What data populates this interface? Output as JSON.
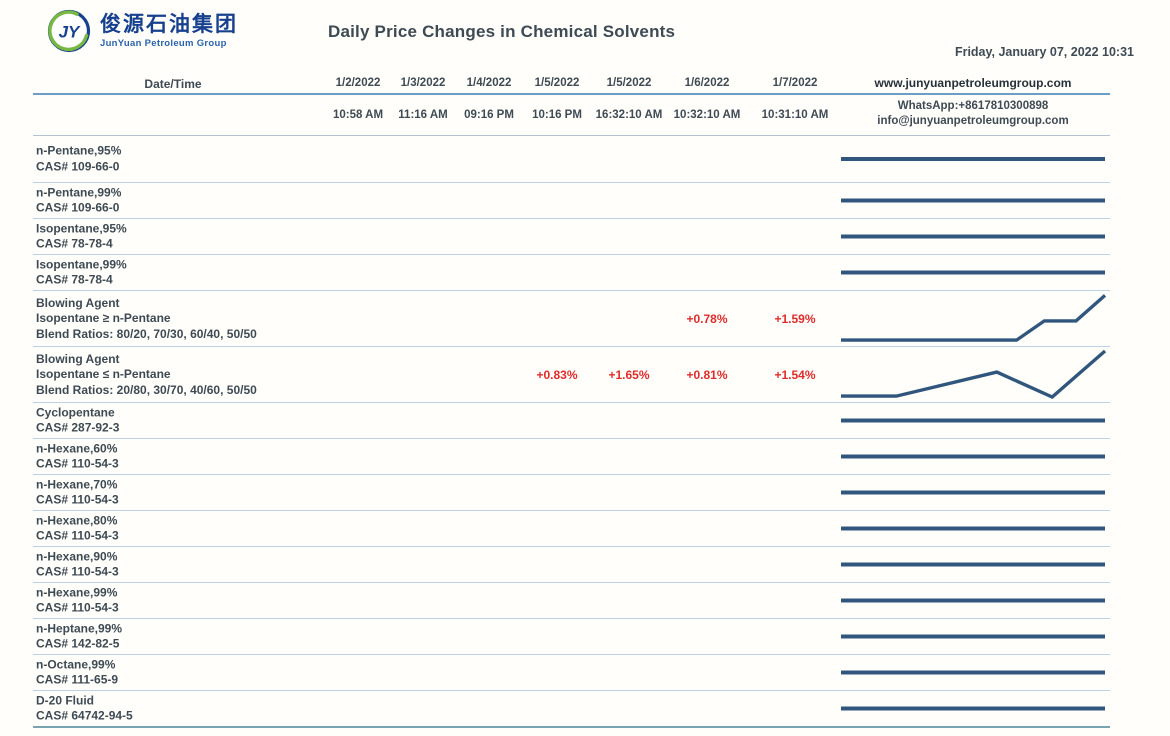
{
  "header": {
    "logo": {
      "chinese": "俊源石油集团",
      "english": "JunYuan Petroleum Group",
      "monogram": "JY"
    },
    "title": "Daily Price Changes in Chemical Solvents",
    "datetime": "Friday, January 07, 2022 10:31"
  },
  "contact": {
    "website": "www.junyuanpetroleumgroup.com",
    "whatsapp": "WhatsApp:+8617810300898",
    "email": "info@junyuanpetroleumgroup.com"
  },
  "table": {
    "corner_label": "Date/Time",
    "columns": [
      {
        "date": "1/2/2022",
        "time": "10:58 AM"
      },
      {
        "date": "1/3/2022",
        "time": "11:16 AM"
      },
      {
        "date": "1/4/2022",
        "time": "09:16 PM"
      },
      {
        "date": "1/5/2022",
        "time": "10:16 PM"
      },
      {
        "date": "1/5/2022",
        "time": "16:32:10 AM"
      },
      {
        "date": "1/6/2022",
        "time": "10:32:10 AM"
      },
      {
        "date": "1/7/2022",
        "time": "10:31:10 AM"
      }
    ],
    "rows": [
      {
        "label_lines": [
          "n-Pentane,95%",
          "CAS# 109-66-0"
        ],
        "values": [
          "",
          "",
          "",
          "",
          "",
          "",
          ""
        ],
        "sparkline": "flat"
      },
      {
        "label_lines": [
          "n-Pentane,99%",
          "CAS# 109-66-0"
        ],
        "values": [
          "",
          "",
          "",
          "",
          "",
          "",
          ""
        ],
        "sparkline": "flat"
      },
      {
        "label_lines": [
          "Isopentane,95%",
          "CAS# 78-78-4"
        ],
        "values": [
          "",
          "",
          "",
          "",
          "",
          "",
          ""
        ],
        "sparkline": "flat"
      },
      {
        "label_lines": [
          "Isopentane,99%",
          "CAS# 78-78-4"
        ],
        "values": [
          "",
          "",
          "",
          "",
          "",
          "",
          ""
        ],
        "sparkline": "flat"
      },
      {
        "label_lines": [
          "Blowing Agent",
          "Isopentane ≥ n-Pentane",
          "Blend Ratios: 80/20, 70/30, 60/40, 50/50"
        ],
        "values": [
          "",
          "",
          "",
          "",
          "",
          "+0.78%",
          "+1.59%"
        ],
        "sparkline": [
          [
            0,
            0.96
          ],
          [
            0.665,
            0.96
          ],
          [
            0.77,
            0.56
          ],
          [
            0.89,
            0.56
          ],
          [
            1,
            0.03
          ]
        ]
      },
      {
        "label_lines": [
          "Blowing Agent",
          "Isopentane ≤ n-Pentane",
          "Blend Ratios: 20/80, 30/70, 40/60, 50/50"
        ],
        "values": [
          "",
          "",
          "",
          "+0.83%",
          "+1.65%",
          "+0.81%",
          "+1.54%"
        ],
        "sparkline": [
          [
            0,
            0.96
          ],
          [
            0.21,
            0.96
          ],
          [
            0.59,
            0.46
          ],
          [
            0.8,
            0.98
          ],
          [
            1,
            0.02
          ]
        ]
      },
      {
        "label_lines": [
          "Cyclopentane",
          "CAS# 287-92-3"
        ],
        "values": [
          "",
          "",
          "",
          "",
          "",
          "",
          ""
        ],
        "sparkline": "flat"
      },
      {
        "label_lines": [
          "n-Hexane,60%",
          "CAS# 110-54-3"
        ],
        "values": [
          "",
          "",
          "",
          "",
          "",
          "",
          ""
        ],
        "sparkline": "flat"
      },
      {
        "label_lines": [
          "n-Hexane,70%",
          "CAS# 110-54-3"
        ],
        "values": [
          "",
          "",
          "",
          "",
          "",
          "",
          ""
        ],
        "sparkline": "flat"
      },
      {
        "label_lines": [
          "n-Hexane,80%",
          "CAS# 110-54-3"
        ],
        "values": [
          "",
          "",
          "",
          "",
          "",
          "",
          ""
        ],
        "sparkline": "flat"
      },
      {
        "label_lines": [
          "n-Hexane,90%",
          "CAS# 110-54-3"
        ],
        "values": [
          "",
          "",
          "",
          "",
          "",
          "",
          ""
        ],
        "sparkline": "flat"
      },
      {
        "label_lines": [
          "n-Hexane,99%",
          "CAS# 110-54-3"
        ],
        "values": [
          "",
          "",
          "",
          "",
          "",
          "",
          ""
        ],
        "sparkline": "flat"
      },
      {
        "label_lines": [
          "n-Heptane,99%",
          "CAS# 142-82-5"
        ],
        "values": [
          "",
          "",
          "",
          "",
          "",
          "",
          ""
        ],
        "sparkline": "flat"
      },
      {
        "label_lines": [
          "n-Octane,99%",
          "CAS# 111-65-9"
        ],
        "values": [
          "",
          "",
          "",
          "",
          "",
          "",
          ""
        ],
        "sparkline": "flat"
      },
      {
        "label_lines": [
          "D-20 Fluid",
          "CAS# 64742-94-5"
        ],
        "values": [
          "",
          "",
          "",
          "",
          "",
          "",
          ""
        ],
        "sparkline": "flat"
      }
    ]
  },
  "colors": {
    "sparkline": "#31567e",
    "positive_change": "#e02b2b",
    "row_separator": "#bdd2e4",
    "header_rule": "#6d9dc5",
    "logo_blue": "#17418e",
    "logo_green": "#76b843",
    "text": "#3e4a54"
  }
}
